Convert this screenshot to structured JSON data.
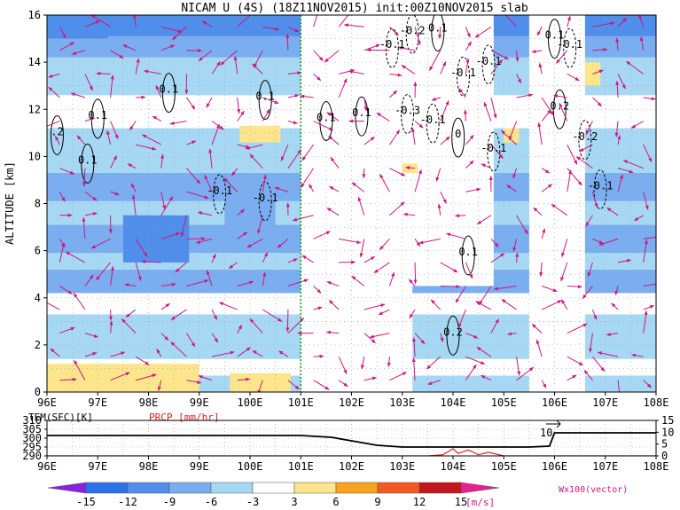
{
  "chart_data": [
    {
      "type": "heatmap",
      "title": "NICAM U (4S) (18Z11NOV2015) init:00Z10NOV2015 slab",
      "ylabel": "ALTITUDE [km]",
      "xlim": [
        96,
        108
      ],
      "ylim": [
        0,
        16
      ],
      "x_ticks": [
        "96E",
        "97E",
        "98E",
        "99E",
        "100E",
        "101E",
        "102E",
        "103E",
        "104E",
        "105E",
        "106E",
        "107E",
        "108E"
      ],
      "y_ticks": [
        "0",
        "2",
        "4",
        "6",
        "8",
        "10",
        "12",
        "14",
        "16"
      ],
      "reference_line_x": 101,
      "shading": {
        "variable": "U",
        "unit": "[m/s]",
        "levels": [
          -15,
          -12,
          -9,
          -6,
          -3,
          3,
          6,
          9,
          12,
          15
        ],
        "colors": [
          "#8a20e0",
          "#2a72e8",
          "#4f8eea",
          "#7aaef0",
          "#a6d8f4",
          "#ffffff",
          "#fce58a",
          "#f9a21c",
          "#f25a22",
          "#c4141c",
          "#e8208e"
        ],
        "bands": [
          {
            "ymin": 0.0,
            "ymax": 0.7,
            "u": -3.5
          },
          {
            "ymin": 0.7,
            "ymax": 1.4,
            "u": -1.5
          },
          {
            "ymin": 1.4,
            "ymax": 3.3,
            "u": -4.5
          },
          {
            "ymin": 3.3,
            "ymax": 4.2,
            "u": -2.0
          },
          {
            "ymin": 4.2,
            "ymax": 5.2,
            "u": -7.0
          },
          {
            "ymin": 5.2,
            "ymax": 5.9,
            "u": -4.0
          },
          {
            "ymin": 5.9,
            "ymax": 7.1,
            "u": -7.5
          },
          {
            "ymin": 7.1,
            "ymax": 8.1,
            "u": -4.5
          },
          {
            "ymin": 8.1,
            "ymax": 9.3,
            "u": -7.0
          },
          {
            "ymin": 9.3,
            "ymax": 11.2,
            "u": -4.0
          },
          {
            "ymin": 11.2,
            "ymax": 12.6,
            "u": -2.0
          },
          {
            "ymin": 12.6,
            "ymax": 14.2,
            "u": -4.5
          },
          {
            "ymin": 14.2,
            "ymax": 15.1,
            "u": -7.5
          },
          {
            "ymin": 15.1,
            "ymax": 16.0,
            "u": -10.0
          }
        ],
        "patches": [
          {
            "x": [
              96.0,
              99.0
            ],
            "y": [
              0.0,
              1.2
            ],
            "u": 4.5
          },
          {
            "x": [
              99.6,
              100.8
            ],
            "y": [
              0.0,
              0.8
            ],
            "u": 4.0
          },
          {
            "x": [
              101.0,
              103.2
            ],
            "y": [
              0.0,
              16.0
            ],
            "u": 0.0
          },
          {
            "x": [
              103.2,
              104.8
            ],
            "y": [
              4.5,
              16.0
            ],
            "u": -2.0
          },
          {
            "x": [
              105.5,
              106.6
            ],
            "y": [
              0.0,
              16.0
            ],
            "u": 0.0
          },
          {
            "x": [
              99.8,
              100.6
            ],
            "y": [
              10.6,
              11.3
            ],
            "u": 4.0
          },
          {
            "x": [
              105.0,
              105.3
            ],
            "y": [
              10.6,
              11.2
            ],
            "u": 4.0
          },
          {
            "x": [
              106.6,
              106.9
            ],
            "y": [
              13.0,
              14.0
            ],
            "u": 4.0
          },
          {
            "x": [
              103.0,
              103.3
            ],
            "y": [
              9.3,
              9.7
            ],
            "u": 4.0
          },
          {
            "x": [
              96.0,
              97.2
            ],
            "y": [
              15.0,
              16.0
            ],
            "u": -11.0
          },
          {
            "x": [
              97.5,
              98.8
            ],
            "y": [
              5.5,
              7.5
            ],
            "u": -9.5
          },
          {
            "x": [
              99.5,
              100.5
            ],
            "y": [
              7.0,
              8.5
            ],
            "u": -9.0
          }
        ]
      },
      "contour_labels": [
        {
          "x": 96.2,
          "y": 10.9,
          "text": ".2"
        },
        {
          "x": 96.8,
          "y": 9.7,
          "text": "0.1"
        },
        {
          "x": 97.0,
          "y": 11.6,
          "text": "0.1"
        },
        {
          "x": 98.4,
          "y": 12.7,
          "text": "0.1"
        },
        {
          "x": 100.3,
          "y": 12.4,
          "text": "0.1"
        },
        {
          "x": 99.4,
          "y": 8.4,
          "text": "-0.1"
        },
        {
          "x": 100.3,
          "y": 8.1,
          "text": "-0.1"
        },
        {
          "x": 101.5,
          "y": 11.5,
          "text": "0.1"
        },
        {
          "x": 102.2,
          "y": 11.7,
          "text": "0.1"
        },
        {
          "x": 102.8,
          "y": 14.6,
          "text": "-0.1"
        },
        {
          "x": 103.2,
          "y": 15.2,
          "text": "-0.2"
        },
        {
          "x": 103.7,
          "y": 15.3,
          "text": "0.1"
        },
        {
          "x": 103.1,
          "y": 11.8,
          "text": "-0.3"
        },
        {
          "x": 103.6,
          "y": 11.4,
          "text": "-0.1"
        },
        {
          "x": 104.2,
          "y": 13.4,
          "text": "-0.1"
        },
        {
          "x": 104.7,
          "y": 13.9,
          "text": "-0.1"
        },
        {
          "x": 104.1,
          "y": 10.8,
          "text": "0"
        },
        {
          "x": 104.8,
          "y": 10.2,
          "text": "-0.1"
        },
        {
          "x": 106.0,
          "y": 15.0,
          "text": "0.1"
        },
        {
          "x": 106.3,
          "y": 14.6,
          "text": "-0.1"
        },
        {
          "x": 106.1,
          "y": 12.0,
          "text": "0.2"
        },
        {
          "x": 106.6,
          "y": 10.7,
          "text": "-0.2"
        },
        {
          "x": 106.9,
          "y": 8.6,
          "text": "-0.1"
        },
        {
          "x": 104.3,
          "y": 5.8,
          "text": "0.1"
        },
        {
          "x": 104.0,
          "y": 2.4,
          "text": "0.2"
        }
      ],
      "vector_legend": "Wx100(vector)"
    },
    {
      "type": "line",
      "xlim": [
        96,
        108
      ],
      "x_ticks": [
        "96E",
        "97E",
        "98E",
        "99E",
        "100E",
        "101E",
        "102E",
        "103E",
        "104E",
        "105E",
        "106E",
        "107E",
        "108E"
      ],
      "series": [
        {
          "name": "TEM(SFC)[K]",
          "color": "#000000",
          "axis": "left",
          "ylim": [
            290,
            310
          ],
          "y_ticks": [
            "290",
            "295",
            "300",
            "305",
            "310"
          ],
          "x": [
            96,
            96.5,
            97,
            98,
            99,
            100,
            101,
            101.6,
            102,
            102.5,
            103,
            103.5,
            104,
            104.5,
            105,
            105.5,
            105.9,
            106,
            107,
            108
          ],
          "y": [
            301.5,
            301.5,
            301.5,
            301.5,
            301.5,
            301.5,
            301.5,
            300.5,
            298.5,
            296,
            295,
            295,
            295,
            295,
            295,
            295,
            295.5,
            303,
            303,
            303
          ]
        },
        {
          "name": "PRCP [mm/hr]",
          "color": "#e02020",
          "axis": "right",
          "ylim": [
            0,
            15
          ],
          "y_ticks": [
            "0",
            "5",
            "10",
            "15"
          ],
          "x": [
            96,
            103.5,
            103.8,
            104.0,
            104.1,
            104.3,
            104.5,
            104.7,
            105.0,
            108
          ],
          "y": [
            0,
            0,
            0.5,
            3.0,
            1.0,
            2.5,
            0.5,
            1.5,
            0,
            0
          ]
        }
      ],
      "annotation": "10"
    }
  ],
  "colorbar": {
    "tick_labels": [
      "-15",
      "-12",
      "-9",
      "-6",
      "-3",
      "3",
      "6",
      "9",
      "12",
      "15"
    ],
    "unit": "[m/s]"
  }
}
